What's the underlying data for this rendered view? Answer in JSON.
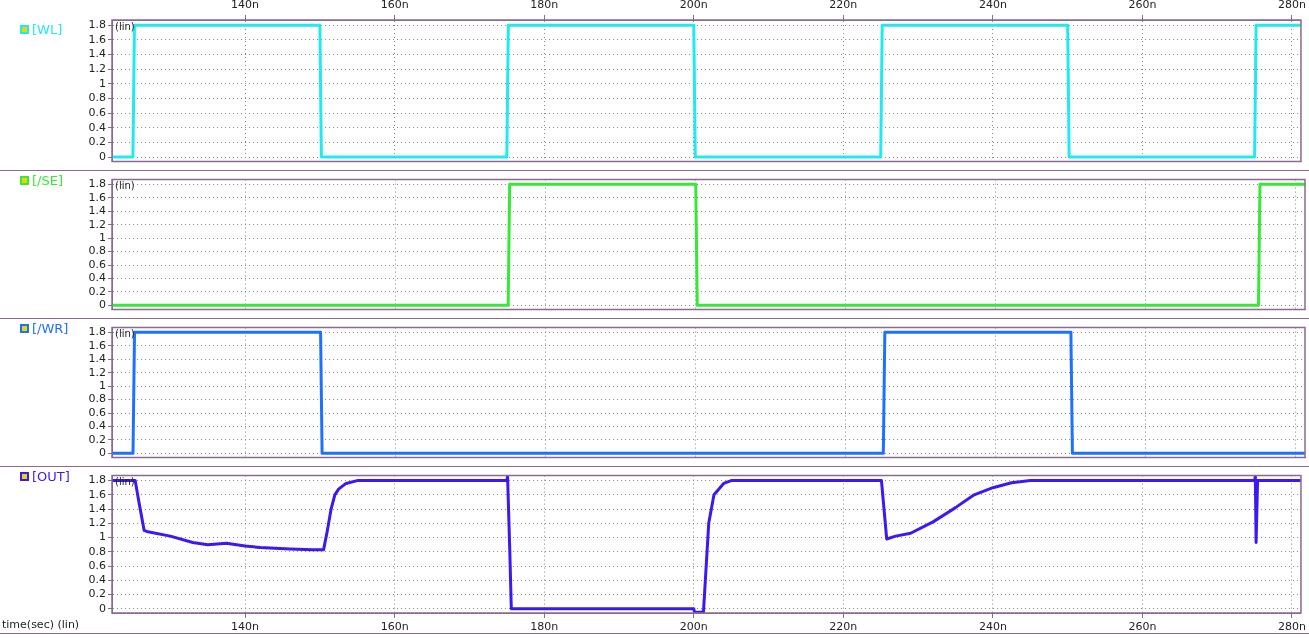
{
  "chart_data": [
    {
      "type": "line",
      "xlim": [
        122.2,
        281.2
      ],
      "xticks": [
        {
          "value": 140,
          "label": "140n"
        },
        {
          "value": 160,
          "label": "160n"
        },
        {
          "value": 180,
          "label": "180n"
        },
        {
          "value": 200,
          "label": "200n"
        },
        {
          "value": 220,
          "label": "220n"
        },
        {
          "value": 240,
          "label": "240n"
        },
        {
          "value": 260,
          "label": "260n"
        },
        {
          "value": 280,
          "label": "280n"
        }
      ],
      "ylim": [
        -0.06,
        1.87
      ],
      "yticks": [
        0,
        0.2,
        0.4,
        0.6,
        0.8,
        1,
        1.2,
        1.4,
        1.6,
        1.8
      ],
      "grid": true,
      "legend": "left",
      "annotations": [
        "(lin)"
      ],
      "series": [
        {
          "name": "[WL]",
          "color": "#22e8f0",
          "x": [
            122.2,
            125,
            125.2,
            150,
            150.2,
            175,
            175.2,
            200,
            200.2,
            225,
            225.2,
            250,
            250.2,
            275,
            275.2,
            281.2
          ],
          "values": [
            0,
            0,
            1.8,
            1.8,
            0,
            0,
            1.8,
            1.8,
            0,
            0,
            1.8,
            1.8,
            0,
            0,
            1.8,
            1.8
          ]
        }
      ]
    },
    {
      "type": "line",
      "xlim": [
        122.2,
        281.2
      ],
      "xticks": [
        {
          "value": 140,
          "label": null
        },
        {
          "value": 160,
          "label": null
        },
        {
          "value": 180,
          "label": null
        },
        {
          "value": 200,
          "label": null
        },
        {
          "value": 220,
          "label": null
        },
        {
          "value": 240,
          "label": null
        },
        {
          "value": 260,
          "label": null
        },
        {
          "value": 280,
          "label": null
        }
      ],
      "ylim": [
        -0.06,
        1.87
      ],
      "yticks": [
        0,
        0.2,
        0.4,
        0.6,
        0.8,
        1,
        1.2,
        1.4,
        1.6,
        1.8
      ],
      "grid": true,
      "legend": "left",
      "tick_labels": "y",
      "annotations": [
        "(lin)"
      ],
      "series": [
        {
          "name": "[/SE]",
          "color": "#38e838",
          "x": [
            122.2,
            175,
            175.2,
            200,
            200.2,
            275,
            275.2,
            281.2
          ],
          "values": [
            0,
            0,
            1.8,
            1.8,
            0,
            0,
            1.8,
            1.8
          ]
        }
      ]
    },
    {
      "type": "line",
      "xlim": [
        122.2,
        281.2
      ],
      "xticks": [
        {
          "value": 140,
          "label": null
        },
        {
          "value": 160,
          "label": null
        },
        {
          "value": 180,
          "label": null
        },
        {
          "value": 200,
          "label": null
        },
        {
          "value": 220,
          "label": null
        },
        {
          "value": 240,
          "label": null
        },
        {
          "value": 260,
          "label": null
        },
        {
          "value": 280,
          "label": null
        }
      ],
      "ylim": [
        -0.06,
        1.87
      ],
      "yticks": [
        0,
        0.2,
        0.4,
        0.6,
        0.8,
        1,
        1.2,
        1.4,
        1.6,
        1.8
      ],
      "grid": true,
      "legend": "left",
      "tick_labels": "y",
      "annotations": [
        "(lin)"
      ],
      "series": [
        {
          "name": "[/WR]",
          "color": "#1e70ff",
          "x": [
            122.2,
            125,
            125.2,
            150,
            150.2,
            225,
            225.2,
            250,
            250.2,
            281.2
          ],
          "values": [
            0,
            0,
            1.8,
            1.8,
            0,
            0,
            1.8,
            1.8,
            0,
            0
          ]
        }
      ]
    },
    {
      "type": "line",
      "xlim": [
        122.2,
        281.2
      ],
      "xticks": [
        {
          "value": 140,
          "label": "140n"
        },
        {
          "value": 160,
          "label": "160n"
        },
        {
          "value": 180,
          "label": "180n"
        },
        {
          "value": 200,
          "label": "200n"
        },
        {
          "value": 220,
          "label": "220n"
        },
        {
          "value": 240,
          "label": "240n"
        },
        {
          "value": 260,
          "label": "260n"
        },
        {
          "value": 280,
          "label": "280n"
        }
      ],
      "ylim": [
        -0.06,
        1.87
      ],
      "yticks": [
        0,
        0.2,
        0.4,
        0.6,
        0.8,
        1,
        1.2,
        1.4,
        1.6,
        1.8
      ],
      "grid": true,
      "legend": "left",
      "xlabel": "time(sec) (lin)",
      "annotations": [
        "(lin)"
      ],
      "series": [
        {
          "name": "[OUT]",
          "color": "#3a1af0",
          "x": [
            122.2,
            125.3,
            125.8,
            126.5,
            127,
            130,
            133,
            135,
            137.5,
            140,
            142,
            146,
            149,
            150.5,
            151,
            151.5,
            152,
            152.5,
            153.5,
            155,
            175,
            175.1,
            175.4,
            175.6,
            200,
            200.1,
            201,
            201.3,
            202,
            202.7,
            204,
            205,
            225,
            225.1,
            225.8,
            227,
            229,
            232,
            235,
            237.5,
            240,
            242.5,
            245,
            248,
            250,
            275,
            275.1,
            275.2,
            275.4,
            275.5,
            281.2
          ],
          "values": [
            1.8,
            1.8,
            1.5,
            1.1,
            1.08,
            1.02,
            0.93,
            0.9,
            0.92,
            0.88,
            0.86,
            0.84,
            0.83,
            0.83,
            1.1,
            1.4,
            1.6,
            1.68,
            1.76,
            1.8,
            1.8,
            1.86,
            0.8,
            0,
            0,
            -0.05,
            -0.05,
            -0.04,
            1.2,
            1.6,
            1.76,
            1.8,
            1.8,
            1.8,
            0.98,
            1.02,
            1.06,
            1.22,
            1.42,
            1.6,
            1.7,
            1.77,
            1.8,
            1.8,
            1.8,
            1.8,
            1.86,
            0.93,
            1.8,
            1.8,
            1.8
          ]
        }
      ]
    }
  ]
}
